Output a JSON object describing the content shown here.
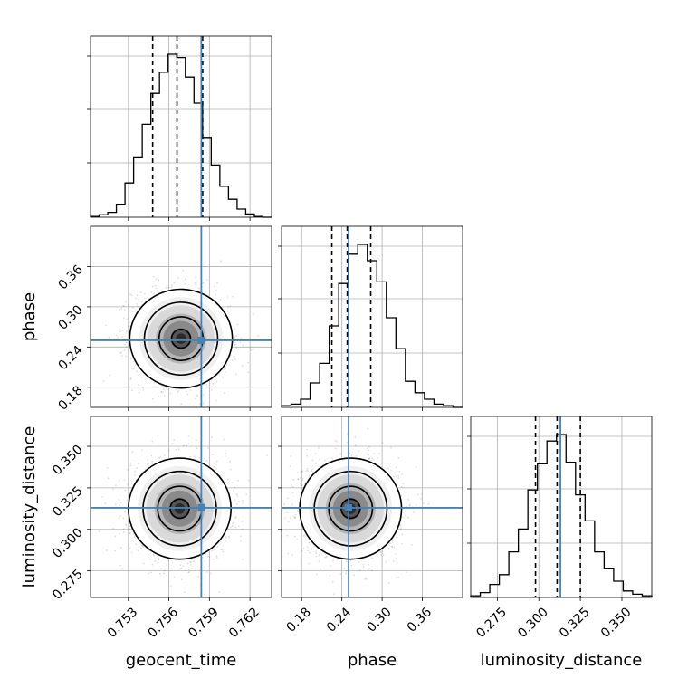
{
  "chart_data": {
    "type": "corner",
    "parameters": [
      {
        "name": "geocent_time",
        "range": [
          0.7502,
          0.7636
        ],
        "ticks": [
          0.753,
          0.756,
          0.759,
          0.762
        ],
        "tick_labels": [
          "0.753",
          "0.756",
          "0.759",
          "0.762"
        ],
        "truth": 0.7584,
        "quantiles": [
          0.7548,
          0.7566,
          0.7585
        ],
        "hist": [
          0.5,
          1.5,
          3,
          8,
          21,
          37,
          57,
          76,
          89,
          100,
          98,
          86,
          70,
          49,
          32,
          19,
          11,
          5,
          2,
          0.5,
          0
        ]
      },
      {
        "name": "phase",
        "range": [
          0.15,
          0.42
        ],
        "ticks": [
          0.18,
          0.24,
          0.3,
          0.36
        ],
        "tick_labels": [
          "0.18",
          "0.24",
          "0.30",
          "0.36"
        ],
        "truth": 0.25,
        "quantiles": [
          0.225,
          0.248,
          0.283
        ],
        "hist": [
          1,
          2,
          5,
          15,
          27,
          50,
          76,
          94,
          100,
          90,
          77,
          55,
          36,
          16,
          9,
          5,
          2,
          1,
          0
        ]
      },
      {
        "name": "luminosity_distance",
        "range": [
          0.259,
          0.368
        ],
        "ticks": [
          0.275,
          0.3,
          0.325,
          0.35
        ],
        "tick_labels": [
          "0.275",
          "0.300",
          "0.325",
          "0.350"
        ],
        "truth": 0.313,
        "quantiles": [
          0.298,
          0.311,
          0.325
        ],
        "hist": [
          1,
          3,
          8,
          14,
          28,
          42,
          66,
          82,
          96,
          100,
          83,
          63,
          47,
          28,
          18,
          10,
          4,
          2,
          1
        ]
      }
    ],
    "pairs": [
      {
        "x": "geocent_time",
        "y": "phase",
        "center": [
          0.7569,
          0.2525
        ],
        "sigma": [
          0.00155,
          0.031
        ],
        "rho": -0.1
      },
      {
        "x": "geocent_time",
        "y": "luminosity_distance",
        "center": [
          0.7568,
          0.3125
        ],
        "sigma": [
          0.00155,
          0.0128
        ],
        "rho": 0.0
      },
      {
        "x": "phase",
        "y": "luminosity_distance",
        "center": [
          0.253,
          0.3125
        ],
        "sigma": [
          0.031,
          0.0128
        ],
        "rho": -0.05
      }
    ],
    "truth_color": "#4682b4",
    "grid": true
  }
}
